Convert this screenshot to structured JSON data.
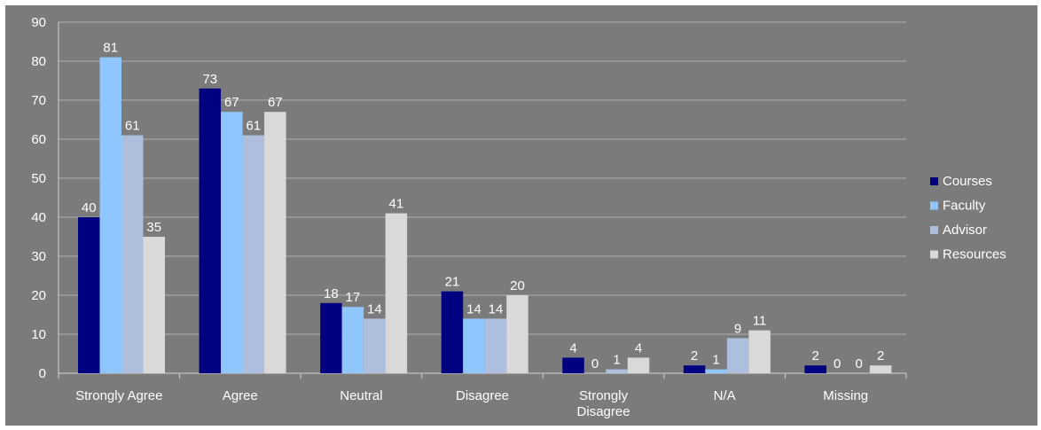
{
  "chart_data": {
    "type": "bar",
    "title": "",
    "xlabel": "",
    "ylabel": "",
    "ylim": [
      0,
      90
    ],
    "yticks": [
      0,
      10,
      20,
      30,
      40,
      50,
      60,
      70,
      80,
      90
    ],
    "grid": "horizontal",
    "legend_position": "right",
    "categories": [
      [
        "Strongly Agree"
      ],
      [
        "Agree"
      ],
      [
        "Neutral"
      ],
      [
        "Disagree"
      ],
      [
        "Strongly",
        "Disagree"
      ],
      [
        "N/A"
      ],
      [
        "Missing"
      ]
    ],
    "series": [
      {
        "name": "Courses",
        "color": "#000080",
        "values": [
          40,
          73,
          18,
          21,
          4,
          2,
          2
        ]
      },
      {
        "name": "Faculty",
        "color": "#8fc6ff",
        "values": [
          81,
          67,
          17,
          14,
          0,
          1,
          0
        ]
      },
      {
        "name": "Advisor",
        "color": "#aebfdd",
        "values": [
          61,
          61,
          14,
          14,
          1,
          9,
          0
        ]
      },
      {
        "name": "Resources",
        "color": "#d9d9d9",
        "values": [
          35,
          67,
          41,
          20,
          4,
          11,
          2
        ]
      }
    ],
    "background_color": "#7b7b7b",
    "gridline_color": "#b0b0b0"
  }
}
